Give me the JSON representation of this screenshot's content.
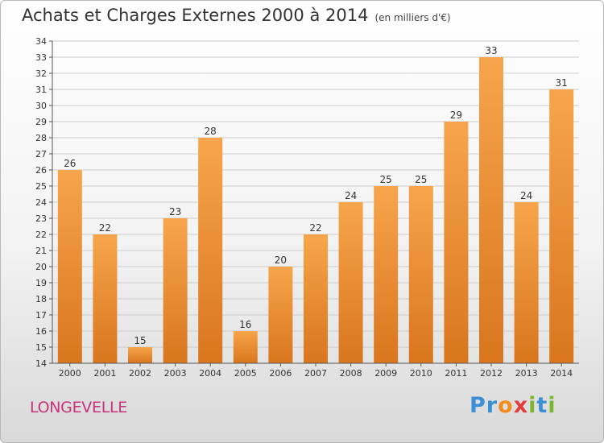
{
  "chart_data": {
    "type": "bar",
    "title": "Achats et Charges Externes 2000 à 2014",
    "unit": "(en milliers d'€)",
    "categories": [
      "2000",
      "2001",
      "2002",
      "2003",
      "2004",
      "2005",
      "2006",
      "2007",
      "2008",
      "2009",
      "2010",
      "2011",
      "2012",
      "2013",
      "2014"
    ],
    "values": [
      26,
      22,
      15,
      23,
      28,
      16,
      20,
      22,
      24,
      25,
      25,
      29,
      33,
      24,
      31
    ],
    "ylim": [
      14,
      34
    ],
    "yticks": [
      14,
      15,
      16,
      17,
      18,
      19,
      20,
      21,
      22,
      23,
      24,
      25,
      26,
      27,
      28,
      29,
      30,
      31,
      32,
      33,
      34
    ],
    "grid": true,
    "colors": {
      "bar_light": "#f7a54c",
      "bar_dark": "#d9761e",
      "grid": "#cccccc"
    }
  },
  "footer": {
    "place": "LONGEVELLE",
    "logo_letters": [
      {
        "ch": "P",
        "color": "#3a8fd6"
      },
      {
        "ch": "r",
        "color": "#3a8fd6"
      },
      {
        "ch": "o",
        "color": "#f28c1e"
      },
      {
        "ch": "x",
        "color": "#e23c3c"
      },
      {
        "ch": "i",
        "color": "#7ab62e"
      },
      {
        "ch": "t",
        "color": "#3a8fd6"
      },
      {
        "ch": "i",
        "color": "#7ab62e"
      }
    ]
  }
}
